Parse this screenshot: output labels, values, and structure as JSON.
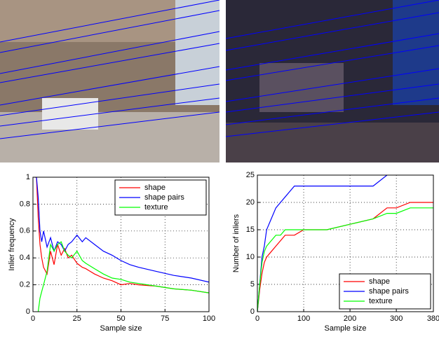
{
  "chart_data": [
    {
      "type": "line",
      "xlabel": "Sample size",
      "ylabel": "Inlier frequency",
      "x": [
        1,
        2,
        3,
        4,
        5,
        6,
        8,
        10,
        12,
        14,
        16,
        18,
        20,
        22,
        25,
        28,
        30,
        35,
        40,
        45,
        50,
        55,
        60,
        70,
        80,
        90,
        100
      ],
      "series": [
        {
          "name": "shape",
          "color": "#ff0000",
          "values": [
            1,
            1,
            0.7,
            0.5,
            0.4,
            0.33,
            0.28,
            0.45,
            0.35,
            0.5,
            0.42,
            0.47,
            0.4,
            0.42,
            0.36,
            0.33,
            0.32,
            0.28,
            0.25,
            0.23,
            0.2,
            0.21,
            0.2,
            0.19,
            0.17,
            0.16,
            0.14
          ]
        },
        {
          "name": "shape pairs",
          "color": "#0000ff",
          "values": [
            1,
            1,
            0.85,
            0.6,
            0.52,
            0.6,
            0.48,
            0.55,
            0.45,
            0.52,
            0.5,
            0.45,
            0.5,
            0.52,
            0.57,
            0.52,
            0.55,
            0.5,
            0.45,
            0.42,
            0.38,
            0.35,
            0.33,
            0.3,
            0.27,
            0.25,
            0.22
          ]
        },
        {
          "name": "texture",
          "color": "#00ff00",
          "values": [
            null,
            null,
            0,
            0.1,
            0.15,
            0.2,
            0.3,
            0.5,
            0.45,
            0.5,
            0.52,
            0.45,
            0.42,
            0.4,
            0.45,
            0.38,
            0.36,
            0.32,
            0.28,
            0.25,
            0.24,
            0.22,
            0.21,
            0.19,
            0.17,
            0.16,
            0.14
          ]
        }
      ],
      "xlim": [
        0,
        100
      ],
      "xticks": [
        0,
        25,
        50,
        75,
        100
      ],
      "ylim": [
        0,
        1
      ],
      "yticks": [
        0,
        0.2,
        0.4,
        0.6,
        0.8,
        1
      ],
      "grid": true,
      "legend": "upper right"
    },
    {
      "type": "line",
      "xlabel": "Sample size",
      "ylabel": "Number of inliers",
      "x": [
        0,
        5,
        10,
        15,
        20,
        30,
        40,
        50,
        60,
        70,
        80,
        100,
        150,
        200,
        250,
        280,
        300,
        330,
        380
      ],
      "series": [
        {
          "name": "shape",
          "color": "#ff0000",
          "values": [
            0,
            4,
            7,
            9,
            10,
            11,
            12,
            13,
            14,
            14,
            14,
            15,
            15,
            16,
            17,
            19,
            19,
            20,
            20
          ]
        },
        {
          "name": "shape pairs",
          "color": "#0000ff",
          "values": [
            0,
            5,
            10,
            12,
            15,
            17,
            19,
            20,
            21,
            22,
            23,
            23,
            23,
            23,
            23,
            25,
            null,
            null,
            null
          ]
        },
        {
          "name": "texture",
          "color": "#00ff00",
          "values": [
            0,
            5,
            9,
            11,
            12,
            13,
            14,
            14,
            15,
            15,
            15,
            15,
            15,
            16,
            17,
            18,
            18,
            19,
            19
          ]
        }
      ],
      "xlim": [
        0,
        380
      ],
      "xticks": [
        0,
        100,
        200,
        300,
        380
      ],
      "ylim": [
        0,
        25
      ],
      "yticks": [
        0,
        5,
        10,
        15,
        20,
        25
      ],
      "grid": true,
      "legend": "lower right"
    }
  ]
}
